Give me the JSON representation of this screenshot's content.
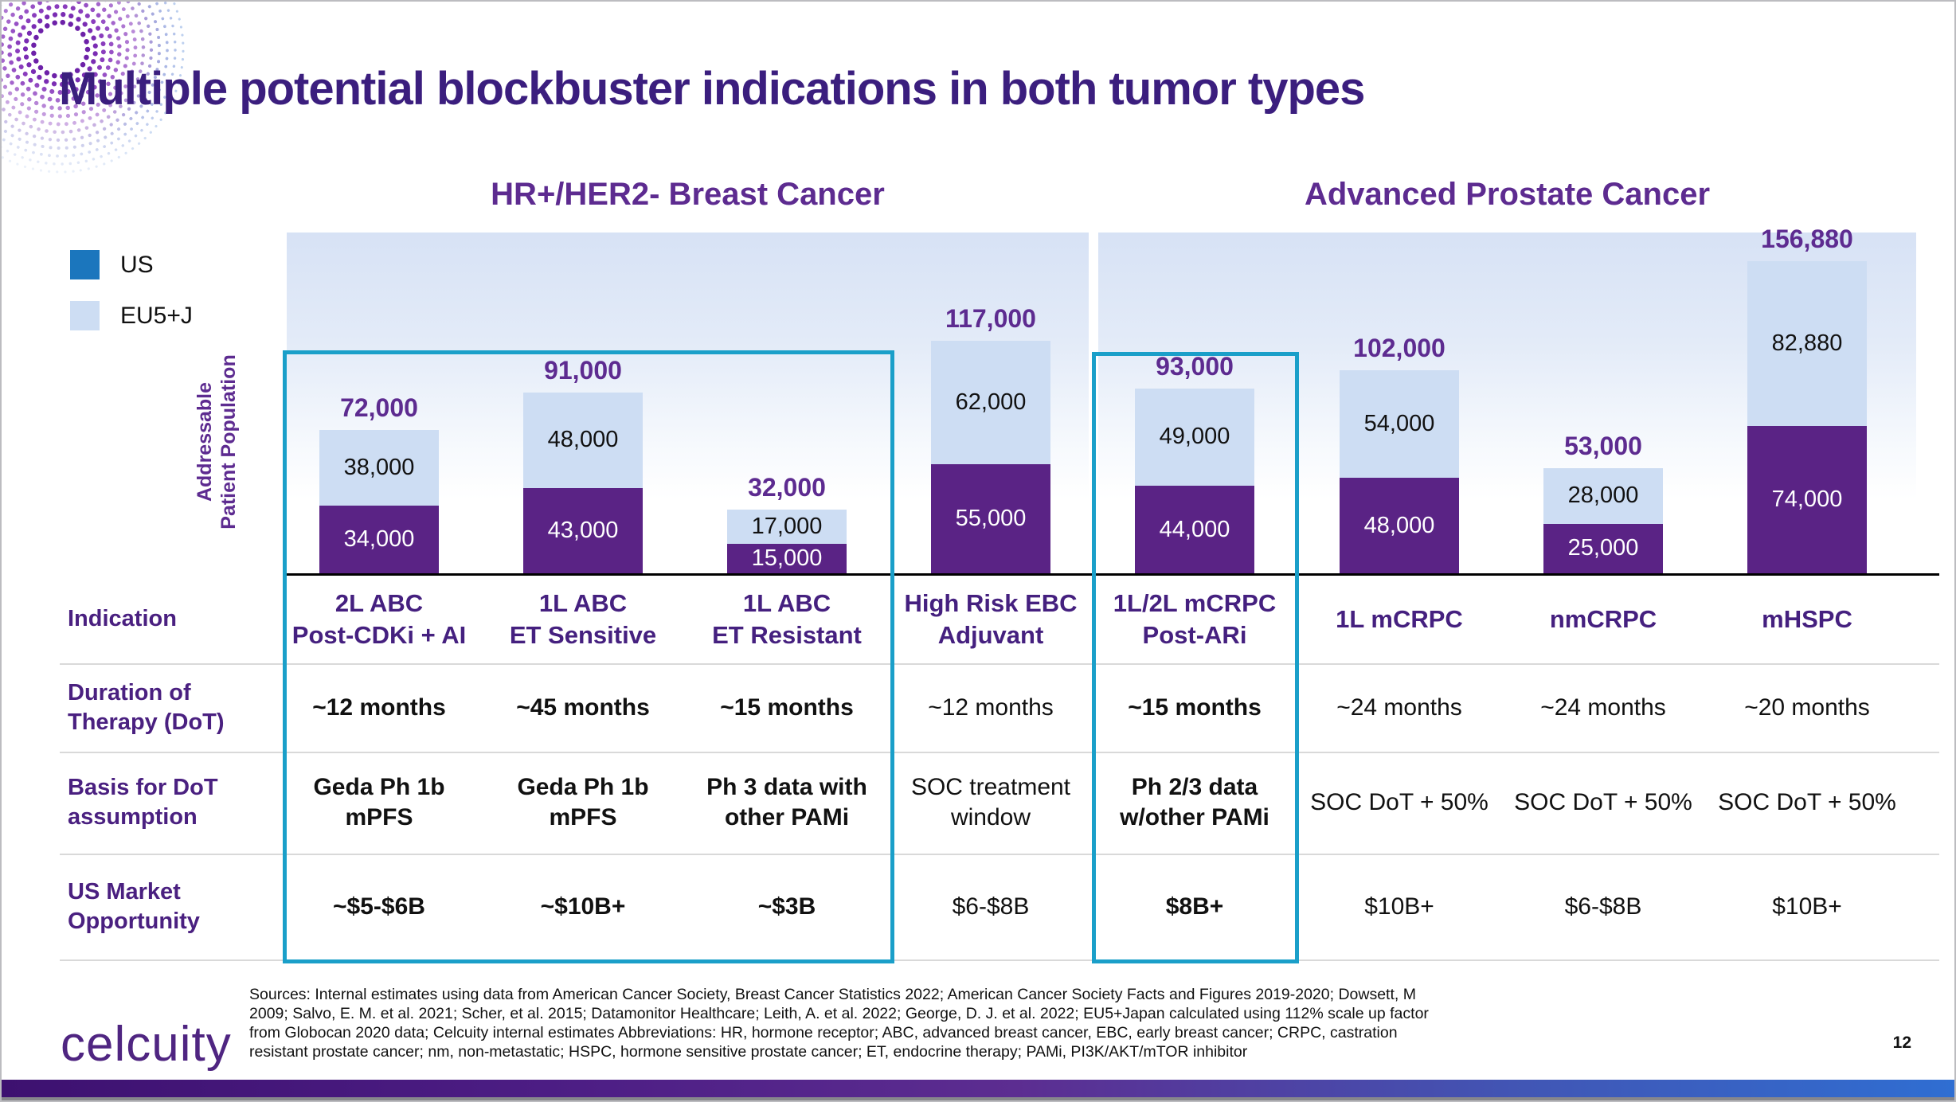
{
  "slide": {
    "title": "Multiple potential blockbuster indications in both tumor types",
    "page_number": "12",
    "logo": "celcuity"
  },
  "legend": [
    {
      "label": "US",
      "color": "#1b76bd"
    },
    {
      "label": "EU5+J",
      "color": "#cdddf3"
    }
  ],
  "chart_data": {
    "type": "bar",
    "stacked": true,
    "ylabel": "Addressable Patient Population",
    "ylabel_lines": [
      "Addressable",
      "Patient Population"
    ],
    "ylim": [
      0,
      160000
    ],
    "grid": false,
    "groups": [
      {
        "label": "HR+/HER2- Breast Cancer",
        "column_indexes": [
          0,
          1,
          2,
          3
        ]
      },
      {
        "label": "Advanced Prostate Cancer",
        "column_indexes": [
          4,
          5,
          6,
          7
        ]
      }
    ],
    "categories": [
      "2L ABC Post-CDKi + AI",
      "1L ABC ET Sensitive",
      "1L ABC ET Resistant",
      "High Risk EBC Adjuvant",
      "1L/2L mCRPC Post-ARi",
      "1L mCRPC",
      "nmCRPC",
      "mHSPC"
    ],
    "series": [
      {
        "name": "US",
        "bar_color": "#5a2385",
        "values": [
          34000,
          43000,
          15000,
          55000,
          44000,
          48000,
          25000,
          74000
        ],
        "labels": [
          "34,000",
          "43,000",
          "15,000",
          "55,000",
          "44,000",
          "48,000",
          "25,000",
          "74,000"
        ]
      },
      {
        "name": "EU5+J",
        "bar_color": "#cdddf3",
        "values": [
          38000,
          48000,
          17000,
          62000,
          49000,
          54000,
          28000,
          82880
        ],
        "labels": [
          "38,000",
          "48,000",
          "17,000",
          "62,000",
          "49,000",
          "54,000",
          "28,000",
          "82,880"
        ]
      }
    ],
    "totals": [
      72000,
      91000,
      32000,
      117000,
      93000,
      102000,
      53000,
      156880
    ],
    "total_labels": [
      "72,000",
      "91,000",
      "32,000",
      "117,000",
      "93,000",
      "102,000",
      "53,000",
      "156,880"
    ],
    "highlighted_columns": [
      0,
      1,
      2,
      4
    ],
    "highlight_color": "#1a9fc9"
  },
  "table": {
    "rows": [
      {
        "label_lines": [
          "Indication"
        ],
        "cells": [
          [
            "2L ABC",
            "Post-CDKi + AI"
          ],
          [
            "1L ABC",
            "ET Sensitive"
          ],
          [
            "1L ABC",
            "ET Resistant"
          ],
          [
            "High Risk EBC",
            "Adjuvant"
          ],
          [
            "1L/2L mCRPC",
            "Post-ARi"
          ],
          [
            "1L mCRPC"
          ],
          [
            "nmCRPC"
          ],
          [
            "mHSPC"
          ]
        ]
      },
      {
        "label_lines": [
          "Duration of",
          "Therapy (DoT)"
        ],
        "cells": [
          [
            "~12 months"
          ],
          [
            "~45 months"
          ],
          [
            "~15 months"
          ],
          [
            "~12 months"
          ],
          [
            "~15 months"
          ],
          [
            "~24 months"
          ],
          [
            "~24 months"
          ],
          [
            "~20 months"
          ]
        ]
      },
      {
        "label_lines": [
          "Basis for DoT",
          "assumption"
        ],
        "cells": [
          [
            "Geda Ph 1b",
            "mPFS"
          ],
          [
            "Geda Ph 1b",
            "mPFS"
          ],
          [
            "Ph 3 data with",
            "other PAMi"
          ],
          [
            "SOC treatment",
            "window"
          ],
          [
            "Ph 2/3 data",
            "w/other PAMi"
          ],
          [
            "SOC DoT + 50%"
          ],
          [
            "SOC DoT + 50%"
          ],
          [
            "SOC DoT + 50%"
          ]
        ]
      },
      {
        "label_lines": [
          "US Market",
          "Opportunity"
        ],
        "cells": [
          [
            "~$5-$6B"
          ],
          [
            "~$10B+"
          ],
          [
            "~$3B"
          ],
          [
            "$6-$8B"
          ],
          [
            "$8B+"
          ],
          [
            "$10B+"
          ],
          [
            "$6-$8B"
          ],
          [
            "$10B+"
          ]
        ]
      }
    ]
  },
  "footer": {
    "sources_lines": [
      "Sources: Internal estimates using data from American Cancer Society, Breast Cancer Statistics 2022; American Cancer Society Facts and Figures 2019-2020; Dowsett, M",
      "2009; Salvo, E. M. et al. 2021; Scher, et al. 2015; Datamonitor Healthcare; Leith, A. et al. 2022; George, D. J. et al. 2022; EU5+Japan calculated using 112% scale up factor",
      "from Globocan 2020 data; Celcuity internal estimates Abbreviations: HR, hormone receptor; ABC, advanced breast cancer, EBC, early breast cancer; CRPC, castration",
      "resistant prostate cancer; nm, non-metastatic; HSPC, hormone sensitive prostate cancer; ET, endocrine therapy; PAMi, PI3K/AKT/mTOR inhibitor"
    ]
  }
}
